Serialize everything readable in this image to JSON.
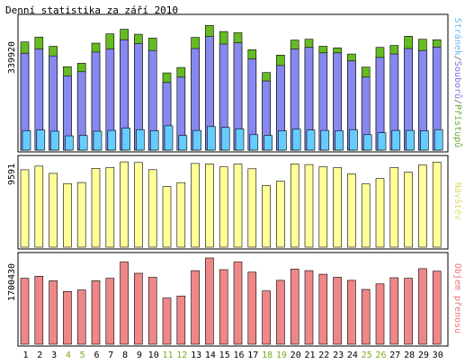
{
  "chart_data": [
    {
      "type": "bar",
      "title": "Denní statistika za září 2010",
      "ymax_label": "339920",
      "ylim": [
        0,
        339920
      ],
      "grid": false,
      "legend_position": "right-vertical",
      "categories": [
        "1",
        "2",
        "3",
        "4",
        "5",
        "6",
        "7",
        "8",
        "9",
        "10",
        "11",
        "12",
        "13",
        "14",
        "15",
        "16",
        "17",
        "18",
        "19",
        "20",
        "21",
        "22",
        "23",
        "24",
        "25",
        "26",
        "27",
        "28",
        "29",
        "30"
      ],
      "weekend_days": [
        "4",
        "5",
        "11",
        "12",
        "18",
        "19",
        "25",
        "26"
      ],
      "legend": [
        {
          "label": "Stránek",
          "color": "#66bbee"
        },
        {
          "label": "/",
          "color": "#666666"
        },
        {
          "label": "Souborů",
          "color": "#7777dd"
        },
        {
          "label": "/",
          "color": "#666666"
        },
        {
          "label": "Přístupů",
          "color": "#66aa33"
        }
      ],
      "series": [
        {
          "name": "Přístupů",
          "color": "#66bb22",
          "values": [
            280000,
            293000,
            269000,
            216000,
            225000,
            277000,
            301000,
            313000,
            300000,
            290000,
            200000,
            214000,
            292000,
            323000,
            307000,
            304000,
            260000,
            201000,
            246000,
            285000,
            287000,
            269000,
            265000,
            249000,
            215000,
            266000,
            271000,
            295000,
            287000,
            286000
          ]
        },
        {
          "name": "Souborů",
          "color": "#8888ee",
          "values": [
            251000,
            262000,
            244000,
            192000,
            203000,
            254000,
            262000,
            286000,
            276000,
            258000,
            175000,
            189000,
            263000,
            294000,
            275000,
            278000,
            236000,
            179000,
            219000,
            262000,
            266000,
            252000,
            252000,
            231000,
            189000,
            240000,
            249000,
            263000,
            258000,
            267000
          ]
        },
        {
          "name": "Stránek",
          "color": "#66ccff",
          "values": [
            50000,
            52000,
            49000,
            37000,
            38000,
            49000,
            51000,
            57000,
            53000,
            50000,
            63000,
            38000,
            51000,
            61000,
            59000,
            55000,
            40000,
            38000,
            50000,
            54000,
            52000,
            51000,
            50000,
            53000,
            40000,
            45000,
            51000,
            51000,
            50000,
            53000
          ]
        }
      ]
    },
    {
      "type": "bar",
      "ymax_label": "9591",
      "ylim": [
        0,
        9591
      ],
      "grid": false,
      "legend": [
        {
          "label": "Návštěv",
          "color": "#dddd66"
        }
      ],
      "series": [
        {
          "name": "Návštěv",
          "color": "#ffff99",
          "values": [
            8600,
            9010,
            8200,
            7050,
            7180,
            8750,
            8860,
            9480,
            9410,
            8610,
            6740,
            7170,
            9300,
            9260,
            8920,
            9240,
            8710,
            6840,
            7330,
            9260,
            9180,
            8930,
            8840,
            8150,
            7020,
            7630,
            8850,
            8330,
            9120,
            9440
          ]
        }
      ]
    },
    {
      "type": "bar",
      "ymax_label": "1700430",
      "ylim": [
        0,
        1700430
      ],
      "grid": false,
      "legend": [
        {
          "label": "Objem přenosu",
          "color": "#ee7777"
        }
      ],
      "series": [
        {
          "name": "Objem přenosu",
          "color": "#ee8888",
          "values": [
            1300000,
            1340000,
            1250000,
            1040000,
            1070000,
            1250000,
            1300000,
            1620000,
            1400000,
            1320000,
            910000,
            950000,
            1450000,
            1700000,
            1470000,
            1620000,
            1420000,
            1050000,
            1260000,
            1480000,
            1450000,
            1380000,
            1320000,
            1260000,
            1080000,
            1190000,
            1310000,
            1300000,
            1490000,
            1440000
          ]
        }
      ]
    }
  ]
}
